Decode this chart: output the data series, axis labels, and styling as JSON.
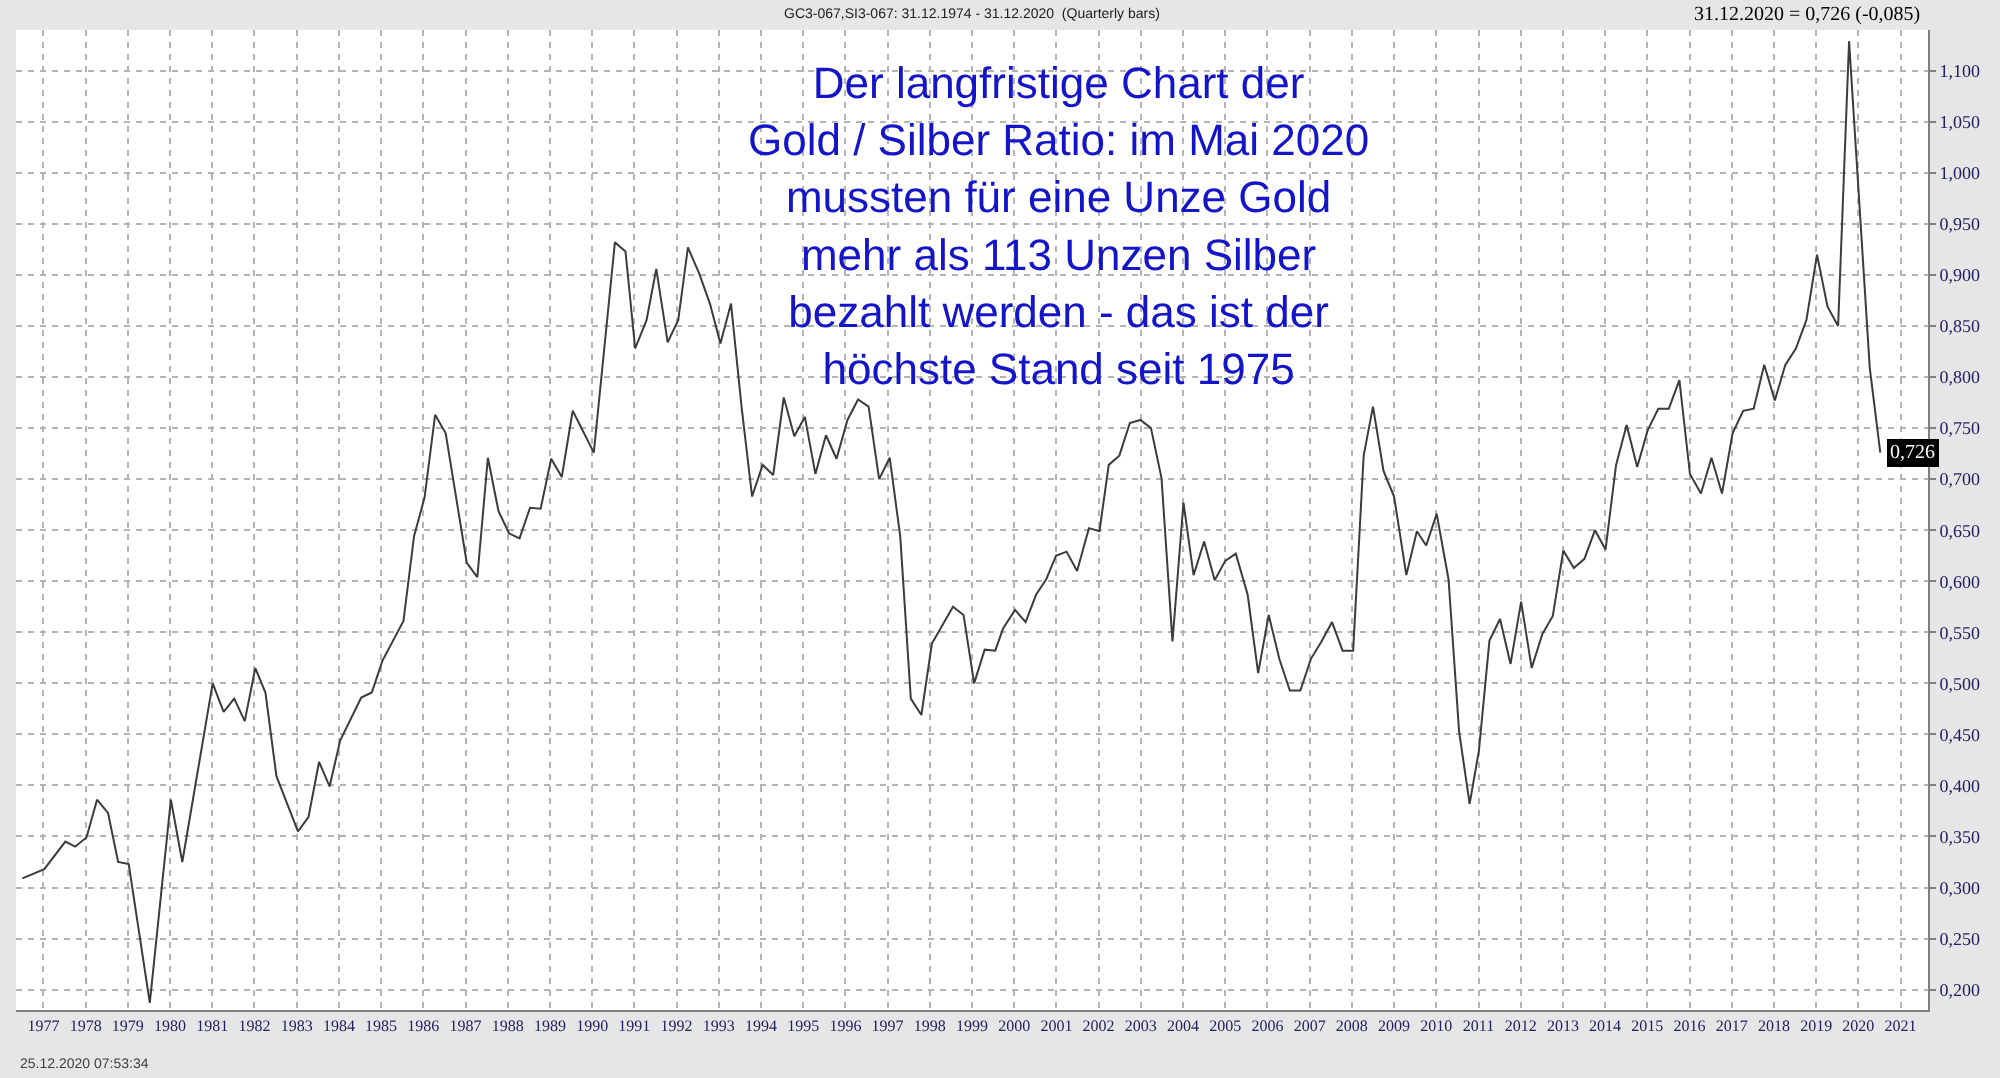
{
  "chart_data": {
    "type": "line",
    "title": "Der langfristige Chart der\nGold / Silber Ratio: im Mai 2020\nmussten für eine Unze Gold\nmehr als 113 Unzen Silber\nbezahlt werden - das ist der\nhöchste Stand seit 1975",
    "subtitle": "GC3-067,SI3-067: 31.12.1974 - 31.12.2020  (Quarterly bars)",
    "annotations": [
      "31.12.2020 = 0,726 (-0,085)",
      "25.12.2020 07:53:34"
    ],
    "series": [
      {
        "color": "#3c3c3c",
        "x": [
          1976.5,
          1977.02,
          1977.52,
          1977.75,
          1978.02,
          1978.27,
          1978.53,
          1978.77,
          1979.02,
          1979.52,
          1980.02,
          1980.29,
          1981.01,
          1981.27,
          1981.52,
          1981.77,
          1982.02,
          1982.26,
          1982.52,
          1983.03,
          1983.28,
          1983.53,
          1983.78,
          1984.03,
          1984.53,
          1984.78,
          1985.03,
          1985.53,
          1985.78,
          1986.03,
          1986.28,
          1986.53,
          1987.03,
          1987.28,
          1987.53,
          1987.78,
          1988.03,
          1988.28,
          1988.53,
          1988.78,
          1989.03,
          1989.28,
          1989.54,
          1990.04,
          1990.54,
          1990.79,
          1991.02,
          1991.29,
          1991.52,
          1991.79,
          1992.04,
          1992.27,
          1992.54,
          1992.79,
          1993.04,
          1993.29,
          1993.54,
          1993.79,
          1994.04,
          1994.29,
          1994.54,
          1994.79,
          1995.04,
          1995.29,
          1995.54,
          1995.79,
          1996.05,
          1996.3,
          1996.55,
          1996.8,
          1997.05,
          1997.3,
          1997.55,
          1997.8,
          1998.05,
          1998.55,
          1998.8,
          1999.05,
          1999.3,
          1999.55,
          1999.74,
          2000.02,
          2000.27,
          2000.52,
          2000.76,
          2000.99,
          2001.24,
          2001.49,
          2001.77,
          2002.02,
          2002.24,
          2002.49,
          2002.74,
          2002.99,
          2003.24,
          2003.49,
          2003.75,
          2004.01,
          2004.25,
          2004.5,
          2004.75,
          2005.0,
          2005.25,
          2005.53,
          2005.78,
          2006.03,
          2006.28,
          2006.53,
          2006.78,
          2007.03,
          2007.28,
          2007.53,
          2007.78,
          2008.03,
          2008.28,
          2008.5,
          2008.75,
          2009.0,
          2009.29,
          2009.54,
          2009.76,
          2010.01,
          2010.29,
          2010.54,
          2010.79,
          2011.01,
          2011.26,
          2011.51,
          2011.76,
          2012.01,
          2012.26,
          2012.51,
          2012.76,
          2013.01,
          2013.26,
          2013.51,
          2013.76,
          2014.01,
          2014.26,
          2014.51,
          2014.76,
          2015.01,
          2015.26,
          2015.51,
          2015.76,
          2016.01,
          2016.27,
          2016.52,
          2016.77,
          2017.02,
          2017.27,
          2017.52,
          2017.77,
          2018.02,
          2018.27,
          2018.52,
          2018.77,
          2019.02,
          2019.27,
          2019.52,
          2019.78,
          2020.27,
          2020.52
        ],
        "values": [
          0.309,
          0.318,
          0.345,
          0.34,
          0.349,
          0.386,
          0.373,
          0.325,
          0.323,
          0.187,
          0.386,
          0.325,
          0.5,
          0.472,
          0.485,
          0.463,
          0.515,
          0.491,
          0.409,
          0.355,
          0.369,
          0.423,
          0.399,
          0.444,
          0.486,
          0.491,
          0.522,
          0.561,
          0.644,
          0.682,
          0.763,
          0.745,
          0.618,
          0.604,
          0.721,
          0.669,
          0.647,
          0.642,
          0.672,
          0.671,
          0.72,
          0.702,
          0.767,
          0.726,
          0.932,
          0.923,
          0.828,
          0.856,
          0.906,
          0.834,
          0.856,
          0.927,
          0.901,
          0.872,
          0.833,
          0.872,
          0.771,
          0.683,
          0.714,
          0.704,
          0.78,
          0.742,
          0.761,
          0.705,
          0.743,
          0.72,
          0.758,
          0.778,
          0.771,
          0.7,
          0.721,
          0.644,
          0.485,
          0.469,
          0.539,
          0.575,
          0.567,
          0.5,
          0.533,
          0.532,
          0.554,
          0.572,
          0.56,
          0.587,
          0.602,
          0.625,
          0.629,
          0.61,
          0.652,
          0.649,
          0.714,
          0.723,
          0.755,
          0.758,
          0.75,
          0.701,
          0.541,
          0.677,
          0.606,
          0.639,
          0.601,
          0.62,
          0.627,
          0.587,
          0.51,
          0.567,
          0.524,
          0.493,
          0.493,
          0.524,
          0.541,
          0.56,
          0.532,
          0.532,
          0.723,
          0.771,
          0.708,
          0.683,
          0.606,
          0.649,
          0.635,
          0.666,
          0.602,
          0.453,
          0.382,
          0.434,
          0.542,
          0.563,
          0.519,
          0.58,
          0.515,
          0.548,
          0.566,
          0.63,
          0.613,
          0.622,
          0.65,
          0.631,
          0.714,
          0.753,
          0.712,
          0.748,
          0.769,
          0.769,
          0.797,
          0.705,
          0.686,
          0.721,
          0.686,
          0.745,
          0.767,
          0.769,
          0.812,
          0.777,
          0.812,
          0.828,
          0.856,
          0.92,
          0.869,
          0.85,
          1.129,
          0.809,
          0.726
        ],
        "value_labels": [
          null,
          null,
          null,
          null,
          null,
          null,
          null,
          null,
          null,
          null,
          null,
          null,
          null,
          null,
          null,
          null,
          null,
          null,
          null,
          null,
          null,
          null,
          null,
          null,
          null,
          null,
          null,
          null,
          null,
          null,
          null,
          null,
          null,
          null,
          null,
          null,
          null,
          null,
          null,
          null,
          null,
          null,
          null,
          null,
          null,
          null,
          null,
          null,
          null,
          null,
          null,
          null,
          null,
          null,
          null,
          null,
          null,
          null,
          null,
          null,
          null,
          null,
          null,
          null,
          null,
          null,
          null,
          null,
          null,
          null,
          null,
          null,
          null,
          null,
          null,
          null,
          null,
          null,
          null,
          null,
          null,
          null,
          null,
          null,
          null,
          null,
          null,
          null,
          null,
          null,
          null,
          null,
          null,
          null,
          null,
          null,
          null,
          null,
          null,
          null,
          null,
          null,
          null,
          null,
          null,
          null,
          null,
          null,
          null,
          null,
          null,
          null,
          null,
          null,
          null,
          null,
          null,
          null,
          null,
          null,
          null,
          null,
          null,
          null,
          null,
          null,
          null,
          null,
          null,
          null,
          null,
          null,
          null,
          null,
          null,
          null,
          null,
          null,
          null,
          null,
          null,
          null,
          null,
          null,
          null,
          null,
          null,
          null,
          null,
          null,
          null,
          null,
          null,
          null,
          null,
          null,
          null,
          null,
          null,
          null,
          null,
          null,
          "0,726"
        ]
      }
    ],
    "xlim": [
      1976.35,
      2021.65
    ],
    "xticks": [
      1977,
      1978,
      1979,
      1980,
      1981,
      1982,
      1983,
      1984,
      1985,
      1986,
      1987,
      1988,
      1989,
      1990,
      1991,
      1992,
      1993,
      1994,
      1995,
      1996,
      1997,
      1998,
      1999,
      2000,
      2001,
      2002,
      2003,
      2004,
      2005,
      2006,
      2007,
      2008,
      2009,
      2010,
      2011,
      2012,
      2013,
      2014,
      2015,
      2016,
      2017,
      2018,
      2019,
      2020,
      2021
    ],
    "ylim": [
      0.18,
      1.14
    ],
    "yticks": [
      {
        "value": 0.2,
        "label": "0,200"
      },
      {
        "value": 0.25,
        "label": "0,250"
      },
      {
        "value": 0.3,
        "label": "0,300"
      },
      {
        "value": 0.35,
        "label": "0,350"
      },
      {
        "value": 0.4,
        "label": "0,400"
      },
      {
        "value": 0.45,
        "label": "0,450"
      },
      {
        "value": 0.5,
        "label": "0,500"
      },
      {
        "value": 0.55,
        "label": "0,550"
      },
      {
        "value": 0.6,
        "label": "0,600"
      },
      {
        "value": 0.65,
        "label": "0,650"
      },
      {
        "value": 0.7,
        "label": "0,700"
      },
      {
        "value": 0.75,
        "label": "0,750"
      },
      {
        "value": 0.8,
        "label": "0,800"
      },
      {
        "value": 0.85,
        "label": "0,850"
      },
      {
        "value": 0.9,
        "label": "0,900"
      },
      {
        "value": 0.95,
        "label": "0,950"
      },
      {
        "value": 1.0,
        "label": "1,000"
      },
      {
        "value": 1.05,
        "label": "1,050"
      },
      {
        "value": 1.1,
        "label": "1,100"
      }
    ],
    "grid": true,
    "marker": "none",
    "line_style": "solid"
  }
}
